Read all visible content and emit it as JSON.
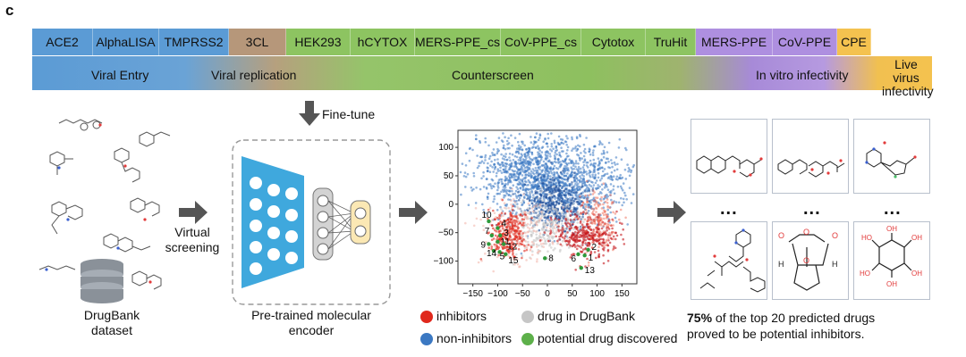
{
  "panel_label": "c",
  "assays": [
    {
      "label": "ACE2",
      "color": "#5b9bd5"
    },
    {
      "label": "AlphaLISA",
      "color": "#5b9bd5"
    },
    {
      "label": "TMPRSS2",
      "color": "#5b9bd5"
    },
    {
      "label": "3CL",
      "color": "#b6977a"
    },
    {
      "label": "HEK293",
      "color": "#8dc461"
    },
    {
      "label": "hCYTOX",
      "color": "#8dc461"
    },
    {
      "label": "MERS-PPE_cs",
      "color": "#8dc461"
    },
    {
      "label": "CoV-PPE_cs",
      "color": "#8dc461"
    },
    {
      "label": "Cytotox",
      "color": "#8dc461"
    },
    {
      "label": "TruHit",
      "color": "#8dc461"
    },
    {
      "label": "MERS-PPE",
      "color": "#ae8fe0"
    },
    {
      "label": "CoV-PPE",
      "color": "#ae8fe0"
    },
    {
      "label": "CPE",
      "color": "#f4c24f"
    }
  ],
  "phases": {
    "viral_entry": "Viral Entry",
    "viral_replication": "Viral replication",
    "counterscreen": "Counterscreen",
    "in_vitro": "In vitro infectivity",
    "live_virus": "Live virus infectivity"
  },
  "workflow": {
    "fine_tune": "Fine-tune",
    "virtual_screening": "Virtual screening",
    "dataset": "DrugBank dataset",
    "encoder": "Pre-trained molecular encoder"
  },
  "scatter": {
    "x_ticks": [
      "−150",
      "−100",
      "−50",
      "0",
      "50",
      "100",
      "150"
    ],
    "y_ticks": [
      "100",
      "50",
      "0",
      "−50",
      "−100"
    ],
    "labels": [
      "10",
      "4",
      "7",
      "3",
      "9",
      "11",
      "12",
      "14",
      "5",
      "15",
      "8",
      "6",
      "1",
      "2",
      "13"
    ]
  },
  "legend": {
    "inhibitors": "inhibitors",
    "drug_in_drugbank": "drug in DrugBank",
    "non_inhibitors": "non-inhibitors",
    "potential": "potential drug discovered"
  },
  "colors": {
    "inhibitor": "#e0281c",
    "non_inhibitor": "#3b78c2",
    "drugbank": "#c6c6c6",
    "potential": "#5db04a"
  },
  "result": {
    "percent": "75%",
    "line1_rest": " of the top 20 predicted drugs",
    "line2": "proved to be potential inhibitors."
  },
  "ellipsis": "..."
}
